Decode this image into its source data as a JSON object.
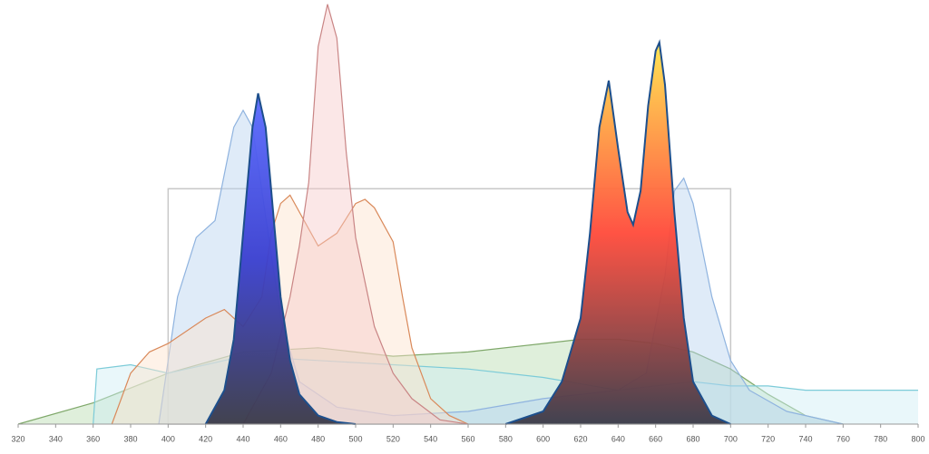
{
  "chart_data": {
    "type": "area",
    "xlim": [
      320,
      800
    ],
    "ylim": [
      0,
      100
    ],
    "xticks": [
      320,
      340,
      360,
      380,
      400,
      420,
      440,
      460,
      480,
      500,
      520,
      540,
      560,
      580,
      600,
      620,
      640,
      660,
      680,
      700,
      720,
      740,
      760,
      780,
      800
    ],
    "box": {
      "x": [
        400,
        700
      ],
      "value": 55.5,
      "color": "#c8c8c8"
    },
    "series": [
      {
        "color": "#b9dcb0",
        "stroke": "#7fa86a",
        "x": [
          320,
          360,
          400,
          440,
          480,
          520,
          560,
          600,
          620,
          640,
          660,
          680,
          700,
          720,
          740,
          760
        ],
        "values": [
          0,
          5,
          12,
          17,
          18,
          16,
          17,
          19,
          20,
          20,
          19,
          17,
          13,
          7,
          2,
          0
        ]
      },
      {
        "color": "#cfeef3",
        "stroke": "#7ccbd8",
        "x": [
          360,
          362,
          380,
          400,
          420,
          440,
          480,
          520,
          560,
          600,
          640,
          680,
          700,
          720,
          740,
          760,
          780,
          800
        ],
        "values": [
          0,
          13,
          14,
          12,
          14,
          16,
          15,
          14,
          13,
          11,
          8,
          10,
          9,
          9,
          8,
          8,
          8,
          8
        ]
      },
      {
        "color": "#b8d3f0",
        "stroke": "#8fb3df",
        "x": [
          395,
          405,
          415,
          425,
          435,
          440,
          445,
          450,
          460,
          470,
          490,
          520,
          560,
          600,
          640,
          655,
          665,
          670,
          675,
          680,
          690,
          700,
          710,
          730,
          760
        ],
        "values": [
          0,
          30,
          44,
          48,
          70,
          74,
          70,
          55,
          25,
          10,
          4,
          2,
          3,
          6,
          8,
          12,
          35,
          55,
          58,
          52,
          30,
          15,
          8,
          3,
          0
        ]
      },
      {
        "color": "#fde3cc",
        "stroke": "#d9895a",
        "x": [
          370,
          380,
          390,
          400,
          420,
          430,
          440,
          450,
          455,
          460,
          465,
          470,
          480,
          490,
          500,
          505,
          510,
          520,
          525,
          530,
          540,
          550,
          560
        ],
        "values": [
          0,
          12,
          17,
          19,
          25,
          27,
          23,
          30,
          45,
          52,
          54,
          50,
          42,
          45,
          52,
          53,
          51,
          43,
          30,
          18,
          6,
          2,
          0
        ]
      },
      {
        "color": "#f7c9c9",
        "stroke": "#c98585",
        "x": [
          440,
          455,
          465,
          470,
          475,
          480,
          485,
          490,
          495,
          500,
          510,
          520,
          530,
          545,
          560
        ],
        "values": [
          0,
          12,
          30,
          42,
          57,
          89,
          99,
          91,
          64,
          44,
          23,
          12,
          6,
          1,
          0
        ]
      },
      {
        "color": "#4a5cff",
        "stroke": "#1d4f8c",
        "gradient": [
          "#5a6bff",
          "#3a3fd0",
          "#3a3a48"
        ],
        "x": [
          420,
          430,
          435,
          440,
          445,
          448,
          452,
          455,
          460,
          465,
          470,
          480,
          490,
          500
        ],
        "values": [
          0,
          8,
          20,
          45,
          70,
          78,
          70,
          55,
          30,
          15,
          7,
          2,
          0.5,
          0
        ]
      },
      {
        "color": "#f04a3a",
        "stroke": "#1d4f8c",
        "gradient": [
          "#ffe34a",
          "#ff4a3a",
          "#3a3a48"
        ],
        "x": [
          580,
          600,
          610,
          620,
          625,
          630,
          635,
          640,
          645,
          648,
          652,
          656,
          660,
          662,
          665,
          670,
          675,
          680,
          690,
          700
        ],
        "values": [
          0,
          3,
          10,
          25,
          45,
          70,
          81,
          65,
          50,
          47,
          55,
          75,
          88,
          90,
          80,
          50,
          25,
          10,
          2,
          0
        ]
      }
    ]
  }
}
